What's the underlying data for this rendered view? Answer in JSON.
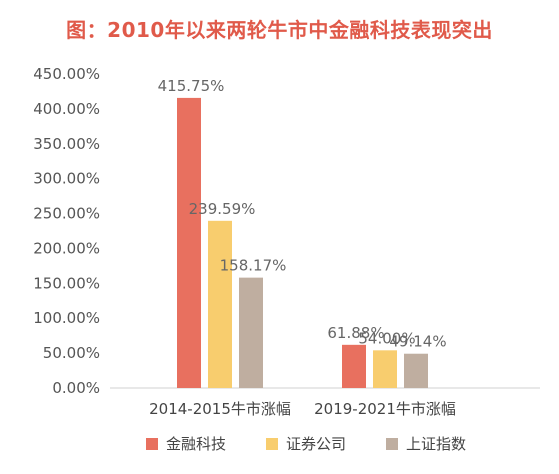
{
  "title": "图：2010年以来两轮牛市中金融科技表现突出",
  "chart_data": {
    "type": "bar",
    "title": "图：2010年以来两轮牛市中金融科技表现突出",
    "categories": [
      "2014-2015牛市涨幅",
      "2019-2021牛市涨幅"
    ],
    "series": [
      {
        "name": "金融科技",
        "color": "#e8705f",
        "values": [
          415.75,
          61.88
        ],
        "labels": [
          "415.75%",
          "61.88%"
        ]
      },
      {
        "name": "证券公司",
        "color": "#f8cd6e",
        "values": [
          239.59,
          54.0
        ],
        "labels": [
          "239.59%",
          "54.00%"
        ]
      },
      {
        "name": "上证指数",
        "color": "#bfaea0",
        "values": [
          158.17,
          49.14
        ],
        "labels": [
          "158.17%",
          "49.14%"
        ]
      }
    ],
    "ylim": [
      0,
      450
    ],
    "yticks": [
      0,
      50,
      100,
      150,
      200,
      250,
      300,
      350,
      400,
      450
    ],
    "ytick_labels": [
      "0.00%",
      "50.00%",
      "100.00%",
      "150.00%",
      "200.00%",
      "250.00%",
      "300.00%",
      "350.00%",
      "400.00%",
      "450.00%"
    ],
    "grid": false,
    "legend_position": "bottom"
  }
}
